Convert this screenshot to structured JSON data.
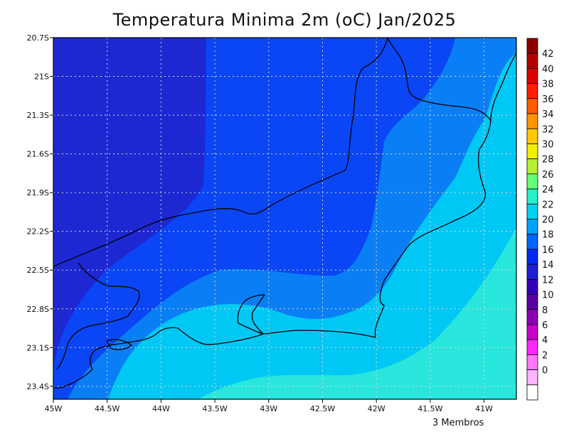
{
  "title": "Temperatura Minima 2m (oC) Jan/2025",
  "footnote": "3 Membros",
  "lat_labels": [
    "20.7S",
    "21S",
    "21.3S",
    "21.6S",
    "21.9S",
    "22.2S",
    "22.5S",
    "22.8S",
    "23.1S",
    "23.4S"
  ],
  "lon_labels": [
    "45W",
    "44.5W",
    "44W",
    "43.5W",
    "43W",
    "42.5W",
    "42W",
    "41.5W",
    "41W"
  ],
  "colorbar": {
    "labels": [
      "42",
      "40",
      "38",
      "36",
      "34",
      "32",
      "30",
      "28",
      "26",
      "24",
      "22",
      "20",
      "18",
      "16",
      "14",
      "12",
      "10",
      "8",
      "6",
      "4",
      "2",
      "0"
    ],
    "colors": [
      "#8b0000",
      "#b40000",
      "#dc0000",
      "#ff1e00",
      "#ff5a00",
      "#ff9600",
      "#ffc800",
      "#f0f000",
      "#b4f032",
      "#64ff78",
      "#28f0c8",
      "#00d2f0",
      "#00a0ff",
      "#0064ff",
      "#0028f0",
      "#1e1ed2",
      "#3200b4",
      "#5a00a0",
      "#8c00b4",
      "#c800c8",
      "#ff28ff",
      "#ff78ff",
      "#ffb4ff",
      "#ffffff"
    ]
  },
  "map_fill_colors": {
    "band_14_16": "#1e28d2",
    "band_16_18": "#0a46f5",
    "band_18_20": "#0a7ff5",
    "band_20_22": "#00c8f5",
    "band_22_24": "#28e6dc"
  }
}
